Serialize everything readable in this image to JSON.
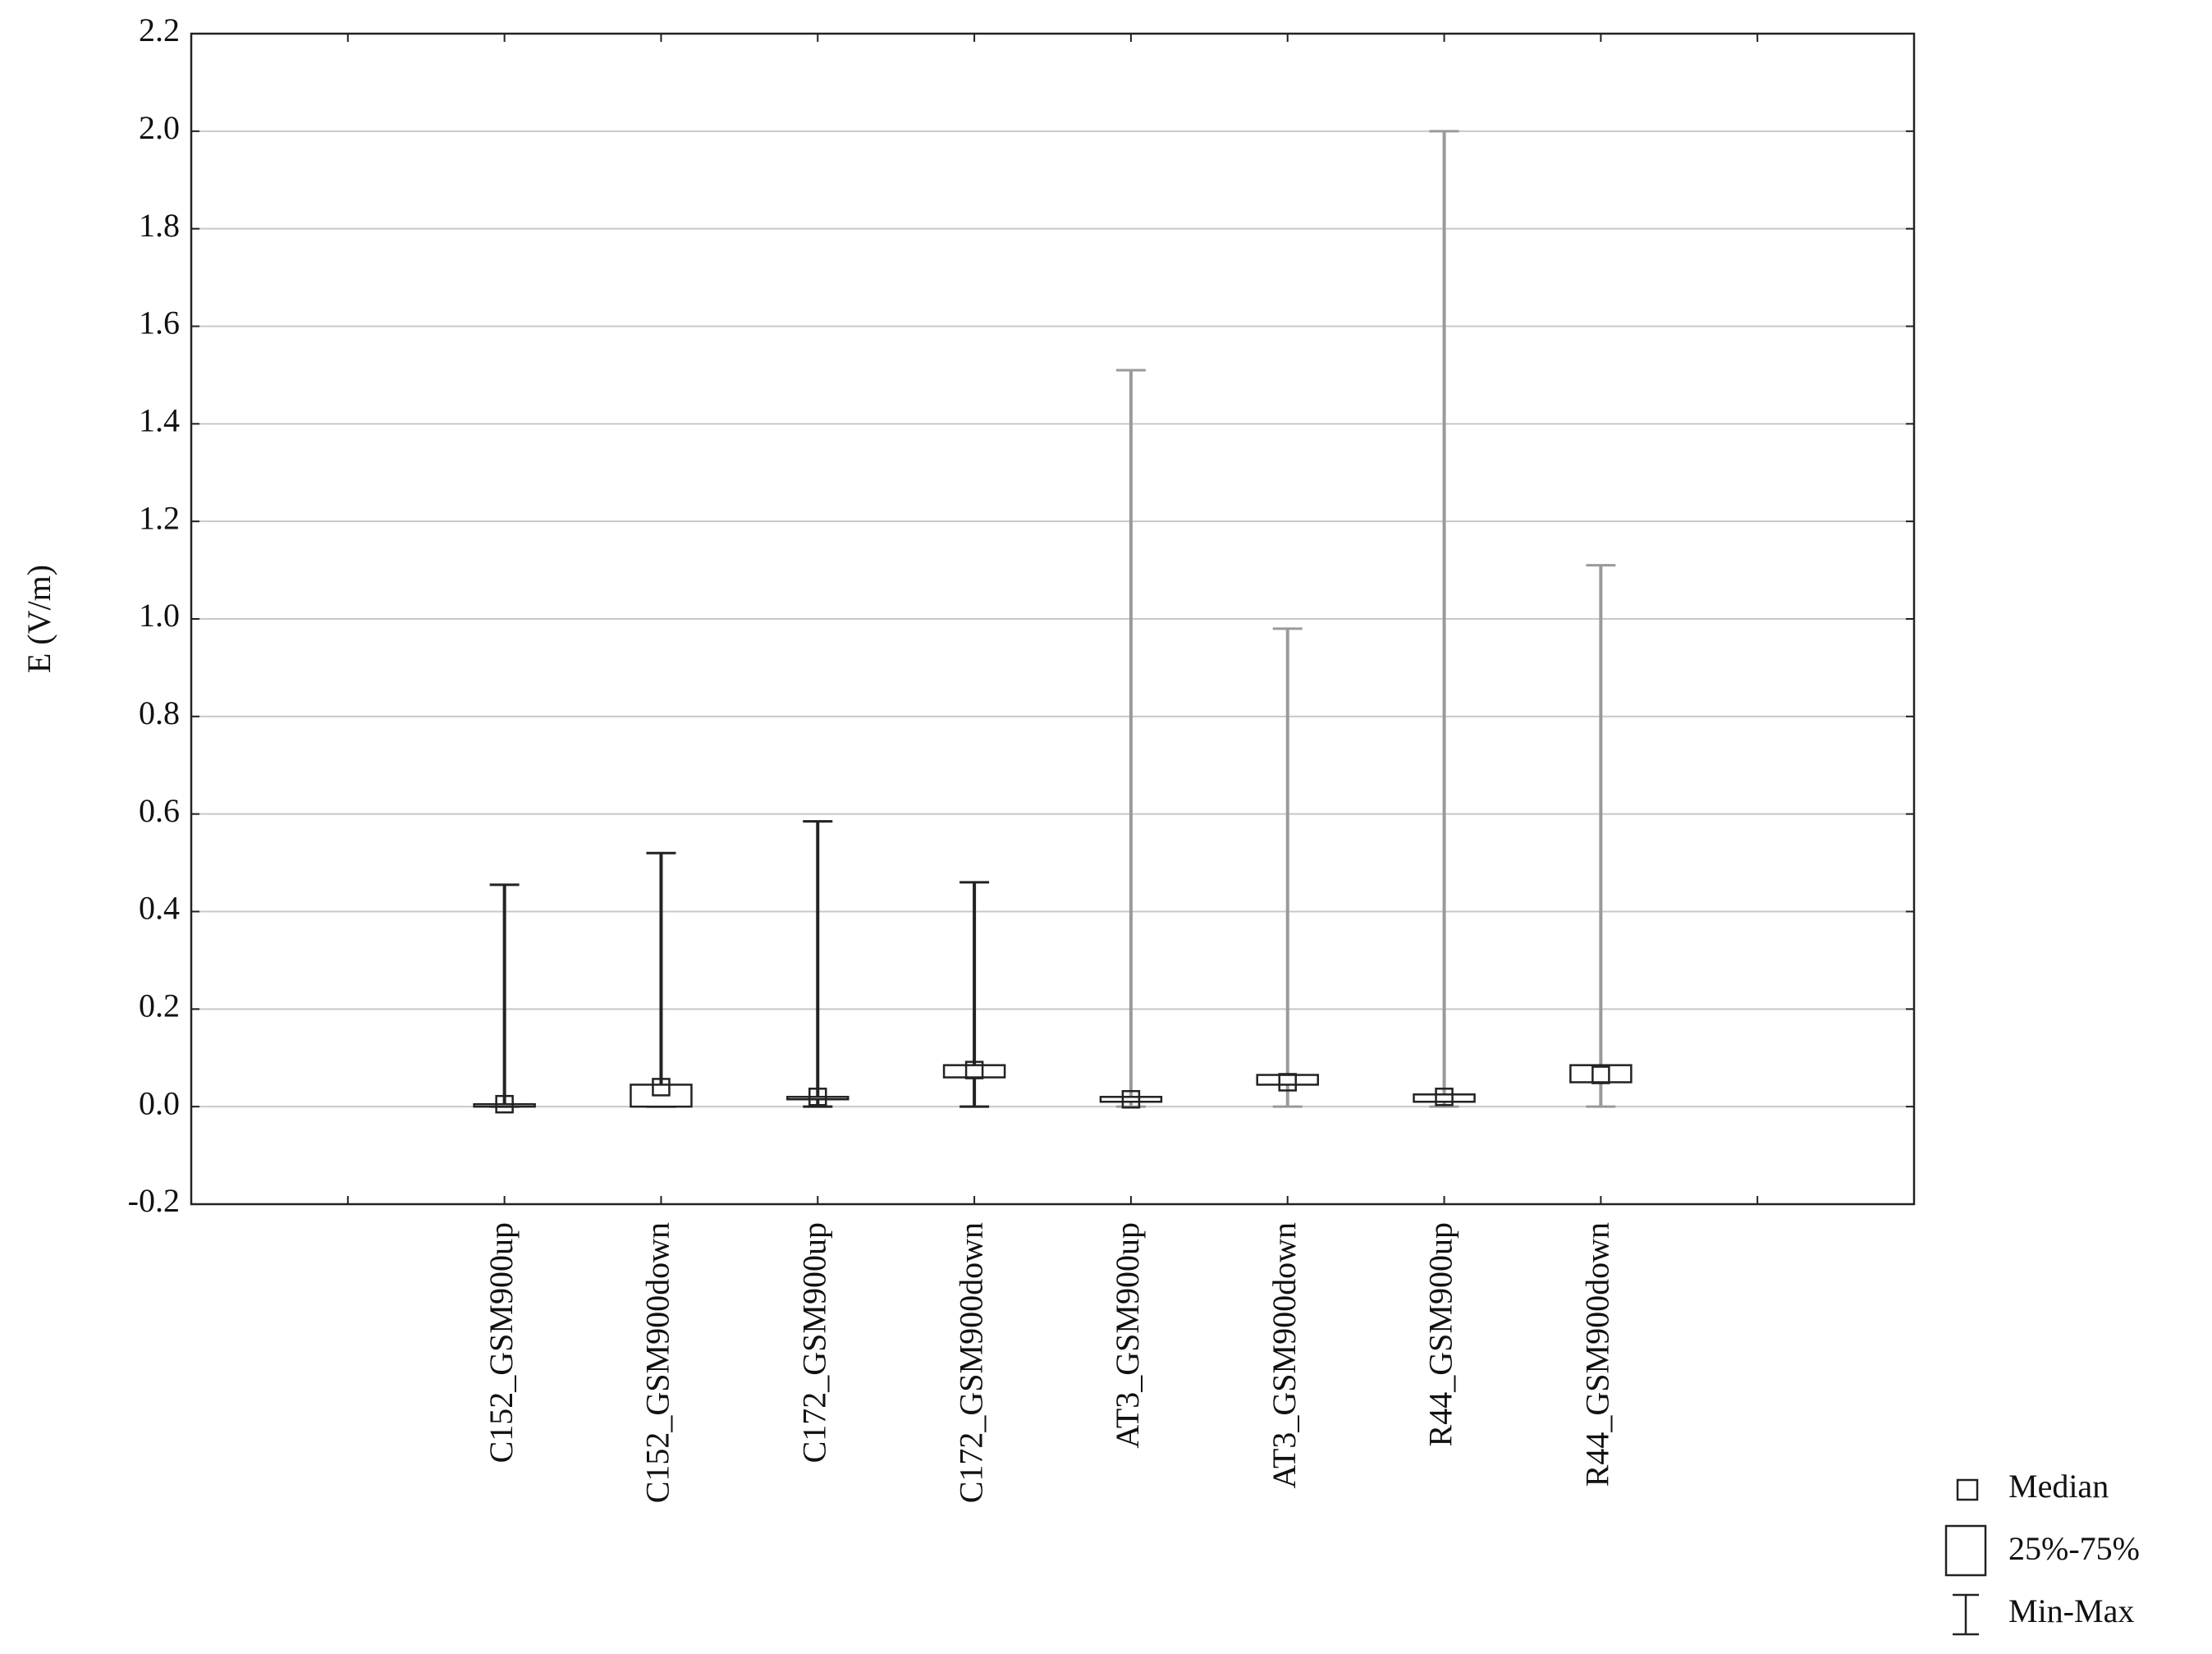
{
  "chart_data": {
    "type": "box",
    "y_label": "E (V/m)",
    "categories": [
      null,
      "C152_GSM900up",
      "C152_GSM900down",
      "C172_GSM900up",
      "C172_GSM900down",
      "AT3_GSM900up",
      "AT3_GSM900down",
      "R44_GSM900up",
      "R44_GSM900down",
      null
    ],
    "min": [
      null,
      0,
      0,
      0,
      0,
      0,
      0,
      0,
      0,
      null
    ],
    "q1": [
      null,
      0,
      0,
      0.015,
      0.06,
      0.01,
      0.045,
      0.01,
      0.05,
      null
    ],
    "median": [
      null,
      0.005,
      0.04,
      0.02,
      0.075,
      0.015,
      0.05,
      0.02,
      0.065,
      null
    ],
    "q3": [
      null,
      0.005,
      0.045,
      0.02,
      0.085,
      0.02,
      0.065,
      0.025,
      0.085,
      null
    ],
    "max": [
      null,
      0.455,
      0.52,
      0.585,
      0.46,
      1.51,
      0.98,
      2.0,
      1.11,
      null
    ],
    "whisker_colors": [
      null,
      "#222222",
      "#222222",
      "#222222",
      "#222222",
      "#9a9a9a",
      "#9a9a9a",
      "#9a9a9a",
      "#9a9a9a",
      null
    ],
    "box_color": "#222222",
    "ylim": [
      -0.2,
      2.2
    ],
    "yticks": [
      -0.2,
      {
        "value": 0,
        "label": "0.0"
      },
      0.2,
      0.4,
      0.6,
      0.8,
      {
        "value": 1,
        "label": "1.0"
      },
      1.2,
      1.4,
      1.6,
      1.8,
      {
        "value": 2,
        "label": "2.0"
      },
      2.2
    ],
    "grid": true,
    "legend": {
      "median": "Median",
      "box": "25%-75%",
      "range": "Min-Max"
    },
    "legend_position": "lower right"
  }
}
